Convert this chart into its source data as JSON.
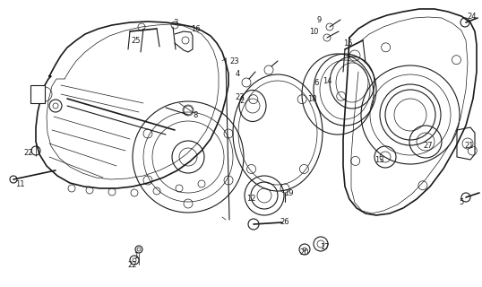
{
  "background_color": "#ffffff",
  "fig_width": 5.38,
  "fig_height": 3.2,
  "dpi": 100,
  "line_color": "#1a1a1a",
  "label_fontsize": 6.0
}
